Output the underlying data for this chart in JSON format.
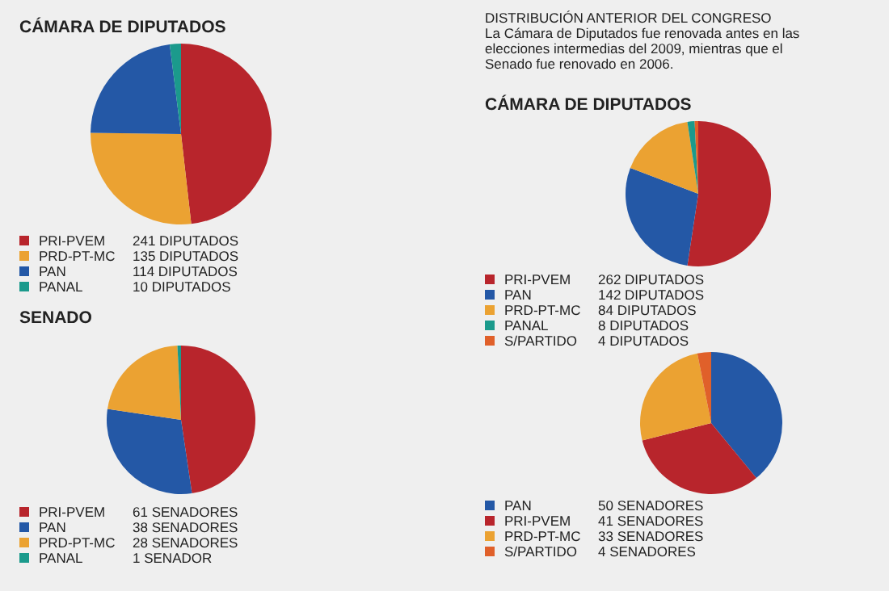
{
  "chart_data": [
    {
      "type": "pie",
      "title": "CÁMARA DE DIPUTADOS",
      "categories": [
        "PRI-PVEM",
        "PRD-PT-MC",
        "PAN",
        "PANAL"
      ],
      "values": [
        241,
        135,
        114,
        10
      ],
      "colors": [
        "#b8252c",
        "#eba232",
        "#2458a6",
        "#1b9a8c"
      ],
      "value_labels": [
        "241 DIPUTADOS",
        "135 DIPUTADOS",
        "114 DIPUTADOS",
        "10 DIPUTADOS"
      ],
      "legend": "bottom"
    },
    {
      "type": "pie",
      "title": "CÁMARA DE DIPUTADOS",
      "annotations": [
        "DISTRIBUCIÓN ANTERIOR DEL CONGRESO",
        "La Cámara de Diputados fue renovada antes en las elecciones intermedias del 2009, mientras que el Senado fue renovado en 2006."
      ],
      "categories": [
        "PRI-PVEM",
        "PAN",
        "PRD-PT-MC",
        "PANAL",
        "S/PARTIDO"
      ],
      "values": [
        262,
        142,
        84,
        8,
        4
      ],
      "colors": [
        "#b8252c",
        "#2458a6",
        "#eba232",
        "#1b9a8c",
        "#e0602a"
      ],
      "value_labels": [
        "262 DIPUTADOS",
        "142 DIPUTADOS",
        "84 DIPUTADOS",
        "8 DIPUTADOS",
        "4 DIPUTADOS"
      ],
      "legend": "bottom"
    },
    {
      "type": "pie",
      "title": "SENADO",
      "categories": [
        "PRI-PVEM",
        "PAN",
        "PRD-PT-MC",
        "PANAL"
      ],
      "values": [
        61,
        38,
        28,
        1
      ],
      "colors": [
        "#b8252c",
        "#2458a6",
        "#eba232",
        "#1b9a8c"
      ],
      "value_labels": [
        "61 SENADORES",
        "38 SENADORES",
        "28 SENADORES",
        "1 SENADOR"
      ],
      "legend": "bottom"
    },
    {
      "type": "pie",
      "categories": [
        "PAN",
        "PRI-PVEM",
        "PRD-PT-MC",
        "S/PARTIDO"
      ],
      "values": [
        50,
        41,
        33,
        4
      ],
      "colors": [
        "#2458a6",
        "#b8252c",
        "#eba232",
        "#e0602a"
      ],
      "value_labels": [
        "50 SENADORES",
        "41 SENADORES",
        "33 SENADORES",
        "4 SENADORES"
      ],
      "legend": "bottom"
    }
  ]
}
